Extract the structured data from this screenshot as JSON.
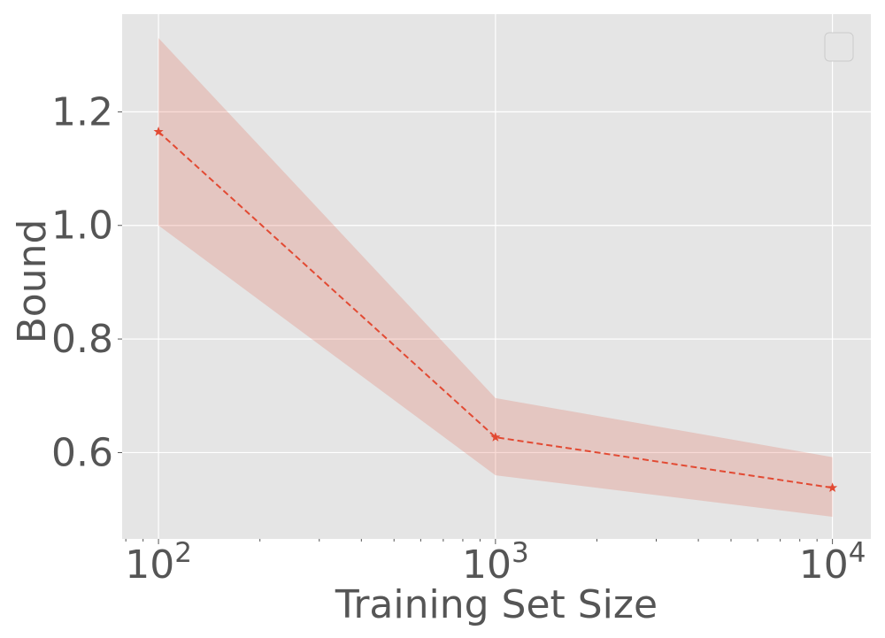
{
  "chart_data": {
    "type": "line",
    "title": "",
    "xlabel": "Training Set Size",
    "ylabel": "Bound",
    "x_scale": "log",
    "xlim": [
      78,
      13000
    ],
    "ylim": [
      0.448,
      1.372
    ],
    "x_ticks": [
      {
        "value": 100,
        "base": "10",
        "exp": "2"
      },
      {
        "value": 1000,
        "base": "10",
        "exp": "3"
      },
      {
        "value": 10000,
        "base": "10",
        "exp": "4"
      }
    ],
    "y_ticks": [
      {
        "value": 0.6,
        "label": "0.6"
      },
      {
        "value": 0.8,
        "label": "0.8"
      },
      {
        "value": 1.0,
        "label": "1.0"
      },
      {
        "value": 1.2,
        "label": "1.2"
      }
    ],
    "grid": true,
    "legend": {
      "position": "top-right",
      "entries": []
    },
    "series": [
      {
        "x": [
          100,
          1000,
          10000
        ],
        "y": [
          1.165,
          0.627,
          0.538
        ],
        "lower": [
          1.0,
          0.56,
          0.487
        ],
        "upper": [
          1.33,
          0.696,
          0.592
        ],
        "color": "#E24A33",
        "band_color": "#E24A33",
        "line_style": "dashed",
        "marker": "star"
      }
    ]
  },
  "colors": {
    "plot_bg": "#E5E5E5",
    "grid": "#FFFFFF",
    "text": "#555555",
    "series": "#E24A33"
  }
}
